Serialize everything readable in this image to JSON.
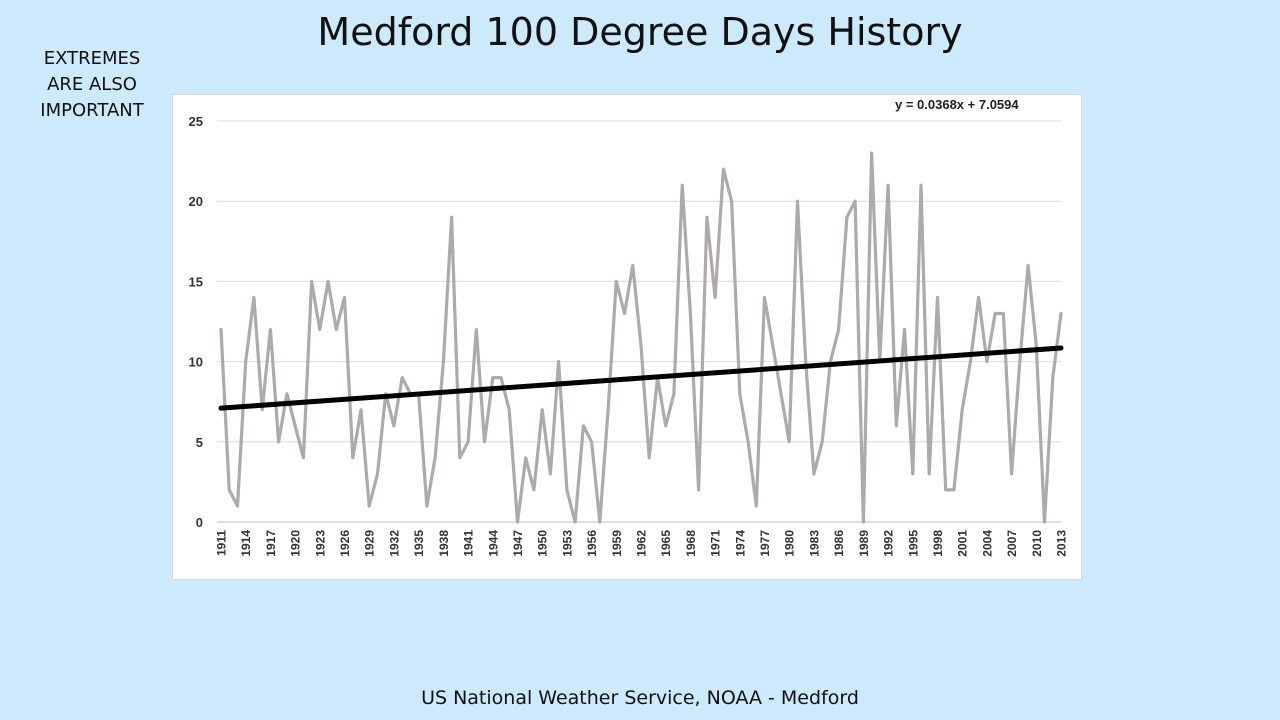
{
  "slide": {
    "title": "Medford 100 Degree Days History",
    "side_note": "EXTREMES ARE ALSO IMPORTANT",
    "footer": "US National Weather Service, NOAA - Medford"
  },
  "chart_data": {
    "type": "line",
    "title": "",
    "xlabel": "",
    "ylabel": "",
    "ylim": [
      0,
      25
    ],
    "yticks": [
      0,
      5,
      10,
      15,
      20,
      25
    ],
    "xticks": [
      1911,
      1914,
      1917,
      1920,
      1923,
      1926,
      1929,
      1932,
      1935,
      1938,
      1941,
      1944,
      1947,
      1950,
      1953,
      1956,
      1959,
      1962,
      1965,
      1968,
      1971,
      1974,
      1977,
      1980,
      1983,
      1986,
      1989,
      1992,
      1995,
      1998,
      2001,
      2004,
      2007,
      2010,
      2013
    ],
    "grid": "horizontal",
    "series": [
      {
        "color": "#aeaaaa",
        "x": [
          1911,
          1912,
          1913,
          1914,
          1915,
          1916,
          1917,
          1918,
          1919,
          1920,
          1921,
          1922,
          1923,
          1924,
          1925,
          1926,
          1927,
          1928,
          1929,
          1930,
          1931,
          1932,
          1933,
          1934,
          1935,
          1936,
          1937,
          1938,
          1939,
          1940,
          1941,
          1942,
          1943,
          1944,
          1945,
          1946,
          1947,
          1948,
          1949,
          1950,
          1951,
          1952,
          1953,
          1954,
          1955,
          1956,
          1957,
          1958,
          1959,
          1960,
          1961,
          1962,
          1963,
          1964,
          1965,
          1966,
          1967,
          1968,
          1969,
          1970,
          1971,
          1972,
          1973,
          1974,
          1975,
          1976,
          1977,
          1978,
          1979,
          1980,
          1981,
          1982,
          1983,
          1984,
          1985,
          1986,
          1987,
          1988,
          1989,
          1990,
          1991,
          1992,
          1993,
          1994,
          1995,
          1996,
          1997,
          1998,
          1999,
          2000,
          2001,
          2002,
          2003,
          2004,
          2005,
          2006,
          2007,
          2008,
          2009,
          2010,
          2011,
          2012,
          2013
        ],
        "y": [
          12,
          2,
          1,
          10,
          14,
          7,
          12,
          5,
          8,
          6,
          4,
          15,
          12,
          15,
          12,
          14,
          4,
          7,
          1,
          3,
          8,
          6,
          9,
          8,
          8,
          1,
          4,
          10,
          19,
          4,
          5,
          12,
          5,
          9,
          9,
          7,
          0,
          4,
          2,
          7,
          3,
          10,
          2,
          0,
          6,
          5,
          0,
          7,
          15,
          13,
          16,
          11,
          4,
          9,
          6,
          8,
          21,
          13,
          2,
          19,
          14,
          22,
          20,
          8,
          5,
          1,
          14,
          11,
          8,
          5,
          20,
          10,
          3,
          5,
          10,
          12,
          19,
          20,
          0,
          23,
          10,
          21,
          6,
          12,
          3,
          21,
          3,
          14,
          2,
          2,
          7,
          10,
          14,
          10,
          13,
          13,
          3,
          10,
          16,
          11,
          0,
          9,
          13
        ]
      },
      {
        "name": "y = 0.0368x  + 7.0594",
        "color": "#000000",
        "type": "trendline",
        "slope": 0.0368,
        "intercept": 7.0594,
        "x": [
          1911,
          2013
        ],
        "y": [
          7.096,
          10.85
        ]
      }
    ],
    "annotation": "y = 0.0368x  + 7.0594"
  }
}
